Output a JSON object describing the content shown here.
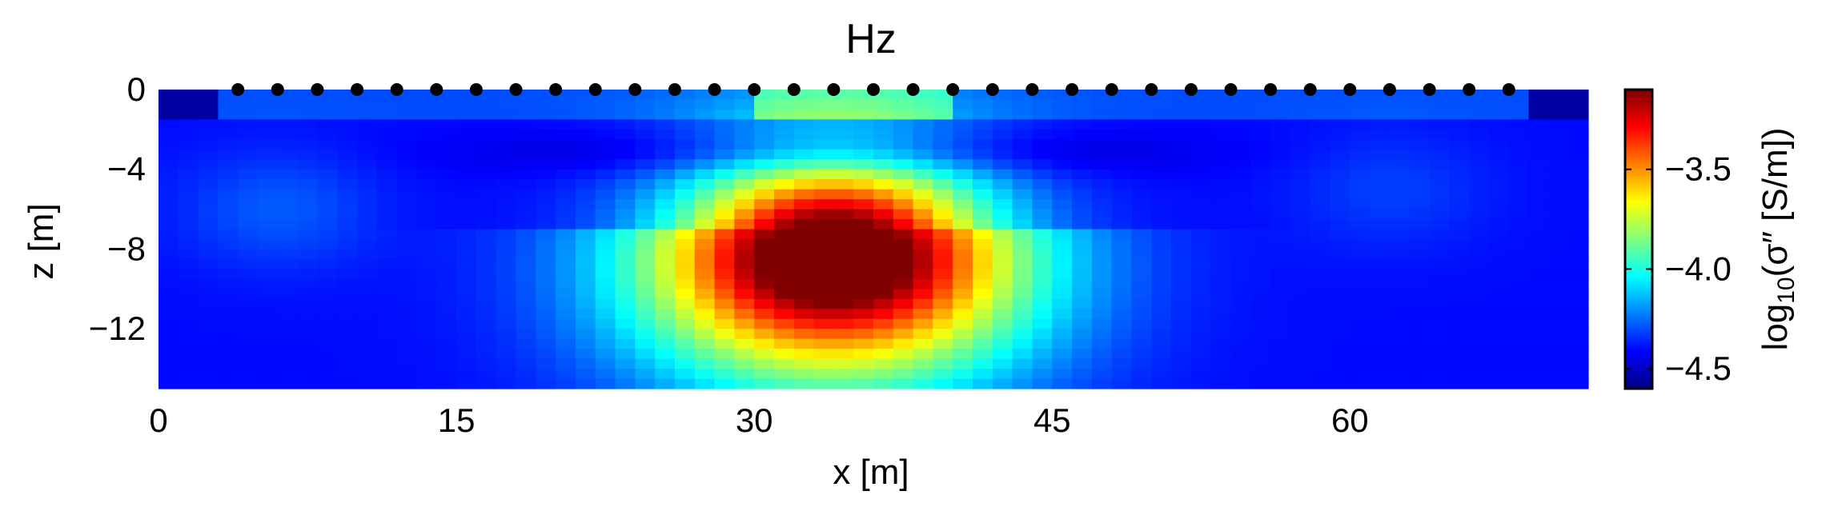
{
  "chart_data": {
    "type": "heatmap",
    "title": "Hz",
    "xlabel": "x [m]",
    "ylabel": "z [m]",
    "xlim": [
      0,
      72
    ],
    "ylim": [
      -15,
      0
    ],
    "xticks": [
      0,
      15,
      30,
      45,
      60
    ],
    "xtick_labels": [
      "0",
      "15",
      "30",
      "45",
      "60"
    ],
    "yticks": [
      0,
      -4,
      -8,
      -12
    ],
    "ytick_labels": [
      "0",
      "−4",
      "−8",
      "−12"
    ],
    "colormap": "jet",
    "colorbar": {
      "label_main": "log",
      "label_sub": "10",
      "label_rest": "(σ″ [S/m])",
      "vmin": -4.6,
      "vmax": -3.1,
      "ticks": [
        -3.5,
        -4.0,
        -4.5
      ],
      "tick_labels": [
        "−3.5",
        "−4.0",
        "−4.5"
      ]
    },
    "anomaly": {
      "x_center": 34,
      "z_center": -8,
      "peak_value": -3.1,
      "background_value": -4.4
    },
    "electrodes": {
      "marker": "black-dot",
      "z": 0,
      "x": [
        4,
        6,
        8,
        10,
        12,
        14,
        16,
        18,
        20,
        22,
        24,
        26,
        28,
        30,
        32,
        34,
        36,
        38,
        40,
        42,
        44,
        46,
        48,
        50,
        52,
        54,
        56,
        58,
        60,
        62,
        64,
        66,
        68
      ]
    }
  }
}
